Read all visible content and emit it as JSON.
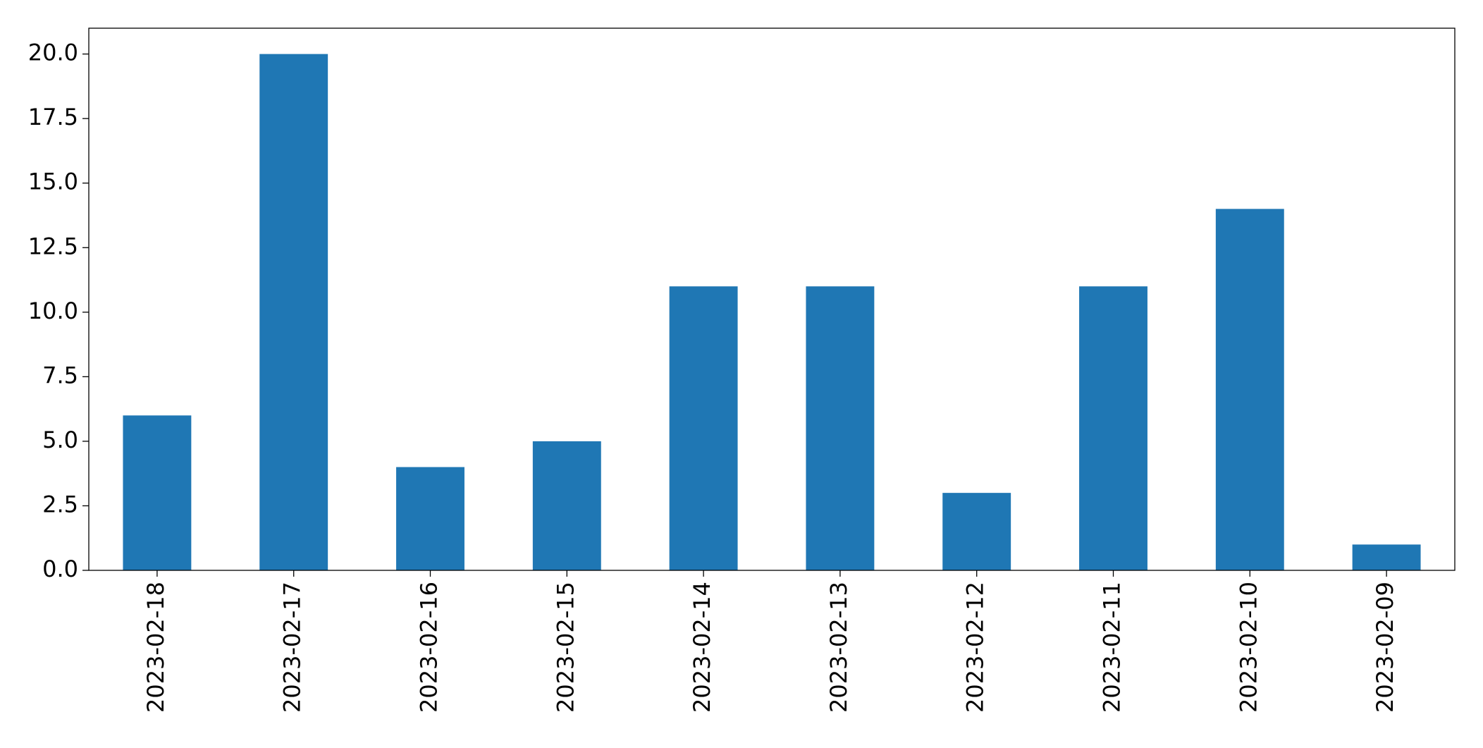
{
  "chart_data": {
    "type": "bar",
    "categories": [
      "2023-02-18",
      "2023-02-17",
      "2023-02-16",
      "2023-02-15",
      "2023-02-14",
      "2023-02-13",
      "2023-02-12",
      "2023-02-11",
      "2023-02-10",
      "2023-02-09"
    ],
    "values": [
      6,
      20,
      4,
      5,
      11,
      11,
      3,
      11,
      14,
      1
    ],
    "color": "#1f77b4",
    "ylim": [
      0,
      21
    ],
    "yticks": [
      {
        "value": 0,
        "label": "0.0"
      },
      2.5,
      {
        "value": 5,
        "label": "5.0"
      },
      7.5,
      {
        "value": 10,
        "label": "10.0"
      },
      12.5,
      {
        "value": 15,
        "label": "15.0"
      },
      17.5,
      {
        "value": 20,
        "label": "20.0"
      }
    ],
    "grid": false
  }
}
